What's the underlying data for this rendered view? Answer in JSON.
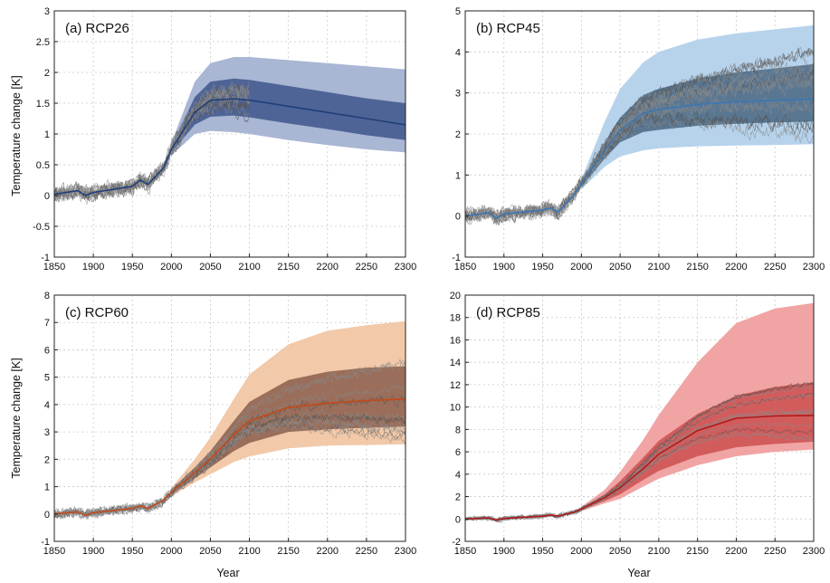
{
  "figure": {
    "ylabel": "Temperature change [K]",
    "xlabel": "Year"
  },
  "chart_data": [
    {
      "type": "line",
      "title": "(a) RCP26",
      "xlabel": "",
      "ylabel": "Temperature change [K]",
      "xlim": [
        1850,
        2300
      ],
      "ylim": [
        -1,
        3
      ],
      "xticks": [
        1850,
        1900,
        1950,
        2000,
        2050,
        2100,
        2150,
        2200,
        2250,
        2300
      ],
      "yticks": [
        -1,
        -0.5,
        0,
        0.5,
        1,
        1.5,
        2,
        2.5,
        3
      ],
      "grid": true,
      "colors": {
        "line": "#1f3f7a",
        "inner": "#4f6496",
        "outer": "#a9b6d4"
      },
      "median": {
        "x": [
          1850,
          1880,
          1890,
          1900,
          1950,
          1960,
          1970,
          1990,
          2000,
          2030,
          2050,
          2080,
          2100,
          2150,
          2200,
          2250,
          2300
        ],
        "y": [
          0.02,
          0.08,
          0.0,
          0.05,
          0.15,
          0.25,
          0.18,
          0.45,
          0.75,
          1.35,
          1.55,
          1.57,
          1.55,
          1.45,
          1.35,
          1.25,
          1.15
        ]
      },
      "band_inner": {
        "x": [
          2000,
          2030,
          2050,
          2080,
          2100,
          2150,
          2200,
          2250,
          2300
        ],
        "lower": [
          0.7,
          1.15,
          1.28,
          1.3,
          1.27,
          1.17,
          1.08,
          0.98,
          0.9
        ],
        "upper": [
          0.8,
          1.6,
          1.85,
          1.9,
          1.88,
          1.78,
          1.68,
          1.58,
          1.5
        ]
      },
      "band_outer": {
        "x": [
          2000,
          2030,
          2050,
          2080,
          2100,
          2150,
          2200,
          2250,
          2300
        ],
        "lower": [
          0.65,
          1.0,
          1.05,
          1.03,
          1.0,
          0.9,
          0.82,
          0.75,
          0.7
        ],
        "upper": [
          0.85,
          1.85,
          2.15,
          2.25,
          2.25,
          2.2,
          2.15,
          2.1,
          2.05
        ]
      },
      "ensemble": {
        "x_start": 1850,
        "x_end": 2100,
        "count": 14,
        "spread": 0.45,
        "noise": 0.09,
        "seed": 11
      }
    },
    {
      "type": "line",
      "title": "(b) RCP45",
      "xlabel": "",
      "ylabel": "",
      "xlim": [
        1850,
        2300
      ],
      "ylim": [
        -1,
        5
      ],
      "xticks": [
        1850,
        1900,
        1950,
        2000,
        2050,
        2100,
        2150,
        2200,
        2250,
        2300
      ],
      "yticks": [
        -1,
        0,
        1,
        2,
        3,
        4,
        5
      ],
      "grid": true,
      "colors": {
        "line": "#3b76b4",
        "inner": "#5a7792",
        "outer": "#b7d3ec"
      },
      "median": {
        "x": [
          1850,
          1880,
          1890,
          1900,
          1950,
          1960,
          1970,
          1990,
          2000,
          2030,
          2050,
          2080,
          2100,
          2150,
          2200,
          2250,
          2300
        ],
        "y": [
          0.0,
          0.08,
          -0.05,
          0.05,
          0.15,
          0.2,
          0.1,
          0.5,
          0.8,
          1.6,
          2.1,
          2.5,
          2.6,
          2.72,
          2.78,
          2.82,
          2.85
        ]
      },
      "band_inner": {
        "x": [
          2000,
          2030,
          2050,
          2080,
          2100,
          2150,
          2200,
          2250,
          2300
        ],
        "lower": [
          0.7,
          1.4,
          1.8,
          2.05,
          2.1,
          2.2,
          2.25,
          2.28,
          2.3
        ],
        "upper": [
          0.85,
          1.8,
          2.4,
          2.95,
          3.1,
          3.35,
          3.5,
          3.6,
          3.7
        ]
      },
      "band_outer": {
        "x": [
          2000,
          2030,
          2050,
          2080,
          2100,
          2150,
          2200,
          2250,
          2300
        ],
        "lower": [
          0.65,
          1.2,
          1.45,
          1.6,
          1.65,
          1.7,
          1.72,
          1.73,
          1.75
        ],
        "upper": [
          0.9,
          2.3,
          3.1,
          3.75,
          4.0,
          4.3,
          4.45,
          4.55,
          4.65
        ]
      },
      "ensemble": {
        "x_start": 1850,
        "x_end": 2300,
        "count": 14,
        "spread": 0.6,
        "noise": 0.12,
        "seed": 29
      }
    },
    {
      "type": "line",
      "title": "(c) RCP60",
      "xlabel": "Year",
      "ylabel": "Temperature change [K]",
      "xlim": [
        1850,
        2300
      ],
      "ylim": [
        -1,
        8
      ],
      "xticks": [
        1850,
        1900,
        1950,
        2000,
        2050,
        2100,
        2150,
        2200,
        2250,
        2300
      ],
      "yticks": [
        -1,
        0,
        1,
        2,
        3,
        4,
        5,
        6,
        7,
        8
      ],
      "grid": true,
      "colors": {
        "line": "#c24a1a",
        "inner": "#9a6e5a",
        "outer": "#f2c9a9"
      },
      "median": {
        "x": [
          1850,
          1880,
          1890,
          1900,
          1950,
          1960,
          1970,
          1990,
          2000,
          2030,
          2050,
          2080,
          2100,
          2150,
          2200,
          2250,
          2300
        ],
        "y": [
          0.0,
          0.08,
          -0.05,
          0.05,
          0.2,
          0.3,
          0.2,
          0.5,
          0.8,
          1.5,
          2.0,
          2.9,
          3.4,
          3.9,
          4.05,
          4.15,
          4.2
        ]
      },
      "band_inner": {
        "x": [
          2000,
          2030,
          2050,
          2080,
          2100,
          2150,
          2200,
          2250,
          2300
        ],
        "lower": [
          0.7,
          1.3,
          1.7,
          2.3,
          2.6,
          3.0,
          3.1,
          3.15,
          3.2
        ],
        "upper": [
          0.9,
          1.7,
          2.3,
          3.4,
          4.1,
          4.9,
          5.2,
          5.35,
          5.4
        ]
      },
      "band_outer": {
        "x": [
          2000,
          2030,
          2050,
          2080,
          2100,
          2150,
          2200,
          2250,
          2300
        ],
        "lower": [
          0.65,
          1.15,
          1.45,
          1.9,
          2.1,
          2.4,
          2.5,
          2.52,
          2.55
        ],
        "upper": [
          0.95,
          2.0,
          2.8,
          4.2,
          5.1,
          6.2,
          6.7,
          6.9,
          7.05
        ]
      },
      "ensemble": {
        "x_start": 1850,
        "x_end": 2300,
        "count": 12,
        "spread": 0.5,
        "noise": 0.12,
        "seed": 47
      }
    },
    {
      "type": "line",
      "title": "(d) RCP85",
      "xlabel": "Year",
      "ylabel": "",
      "xlim": [
        1850,
        2300
      ],
      "ylim": [
        -2,
        20
      ],
      "xticks": [
        1850,
        1900,
        1950,
        2000,
        2050,
        2100,
        2150,
        2200,
        2250,
        2300
      ],
      "yticks": [
        -2,
        0,
        2,
        4,
        6,
        8,
        10,
        12,
        14,
        16,
        18,
        20
      ],
      "grid": true,
      "colors": {
        "line": "#b01a1a",
        "inner": "#d25c5c",
        "outer": "#f1a4a4"
      },
      "median": {
        "x": [
          1850,
          1880,
          1890,
          1900,
          1950,
          1960,
          1970,
          1990,
          2000,
          2030,
          2050,
          2080,
          2100,
          2150,
          2200,
          2250,
          2300
        ],
        "y": [
          0.0,
          0.1,
          -0.1,
          0.05,
          0.25,
          0.35,
          0.25,
          0.6,
          0.9,
          1.9,
          2.8,
          4.5,
          5.8,
          7.9,
          9.0,
          9.2,
          9.25
        ]
      },
      "band_inner": {
        "x": [
          2000,
          2030,
          2050,
          2080,
          2100,
          2150,
          2200,
          2250,
          2300
        ],
        "lower": [
          0.8,
          1.6,
          2.2,
          3.5,
          4.3,
          5.6,
          6.4,
          6.7,
          6.9
        ],
        "upper": [
          1.0,
          2.2,
          3.4,
          5.5,
          7.0,
          9.4,
          11.0,
          11.8,
          12.2
        ]
      },
      "band_outer": {
        "x": [
          2000,
          2030,
          2050,
          2080,
          2100,
          2150,
          2200,
          2250,
          2300
        ],
        "lower": [
          0.7,
          1.4,
          1.8,
          2.9,
          3.6,
          4.8,
          5.6,
          6.0,
          6.2
        ],
        "upper": [
          1.1,
          2.6,
          4.2,
          7.1,
          9.3,
          14.0,
          17.5,
          18.8,
          19.3
        ]
      },
      "ensemble": {
        "x_start": 1850,
        "x_end": 2300,
        "count": 12,
        "spread": 0.55,
        "noise": 0.14,
        "seed": 83
      }
    }
  ]
}
